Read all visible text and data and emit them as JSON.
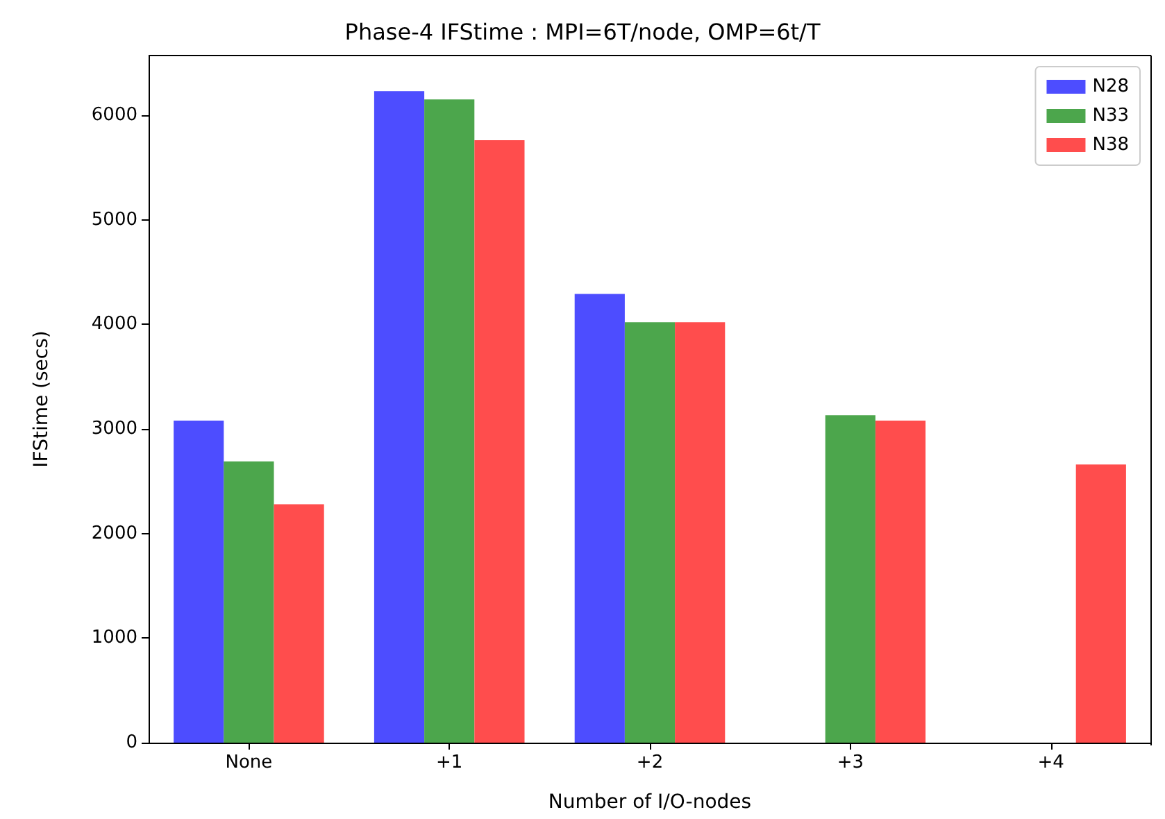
{
  "chart_data": {
    "type": "bar",
    "title": "Phase-4 IFStime : MPI=6T/node, OMP=6t/T",
    "xlabel": "Number of I/O-nodes",
    "ylabel": "IFStime (secs)",
    "categories": [
      "None",
      "+1",
      "+2",
      "+3",
      "+4"
    ],
    "series": [
      {
        "name": "N28",
        "color": "#4d4dff",
        "values": [
          3080,
          6230,
          4290,
          null,
          null
        ]
      },
      {
        "name": "N33",
        "color": "#4ca64c",
        "values": [
          2690,
          6150,
          4020,
          3130,
          null
        ]
      },
      {
        "name": "N38",
        "color": "#ff4d4d",
        "values": [
          2280,
          5760,
          4020,
          3080,
          2660
        ]
      }
    ],
    "ylim": [
      0,
      6570
    ],
    "yticks": [
      0,
      1000,
      2000,
      3000,
      4000,
      5000,
      6000
    ],
    "grid": false,
    "legend": "top right"
  }
}
